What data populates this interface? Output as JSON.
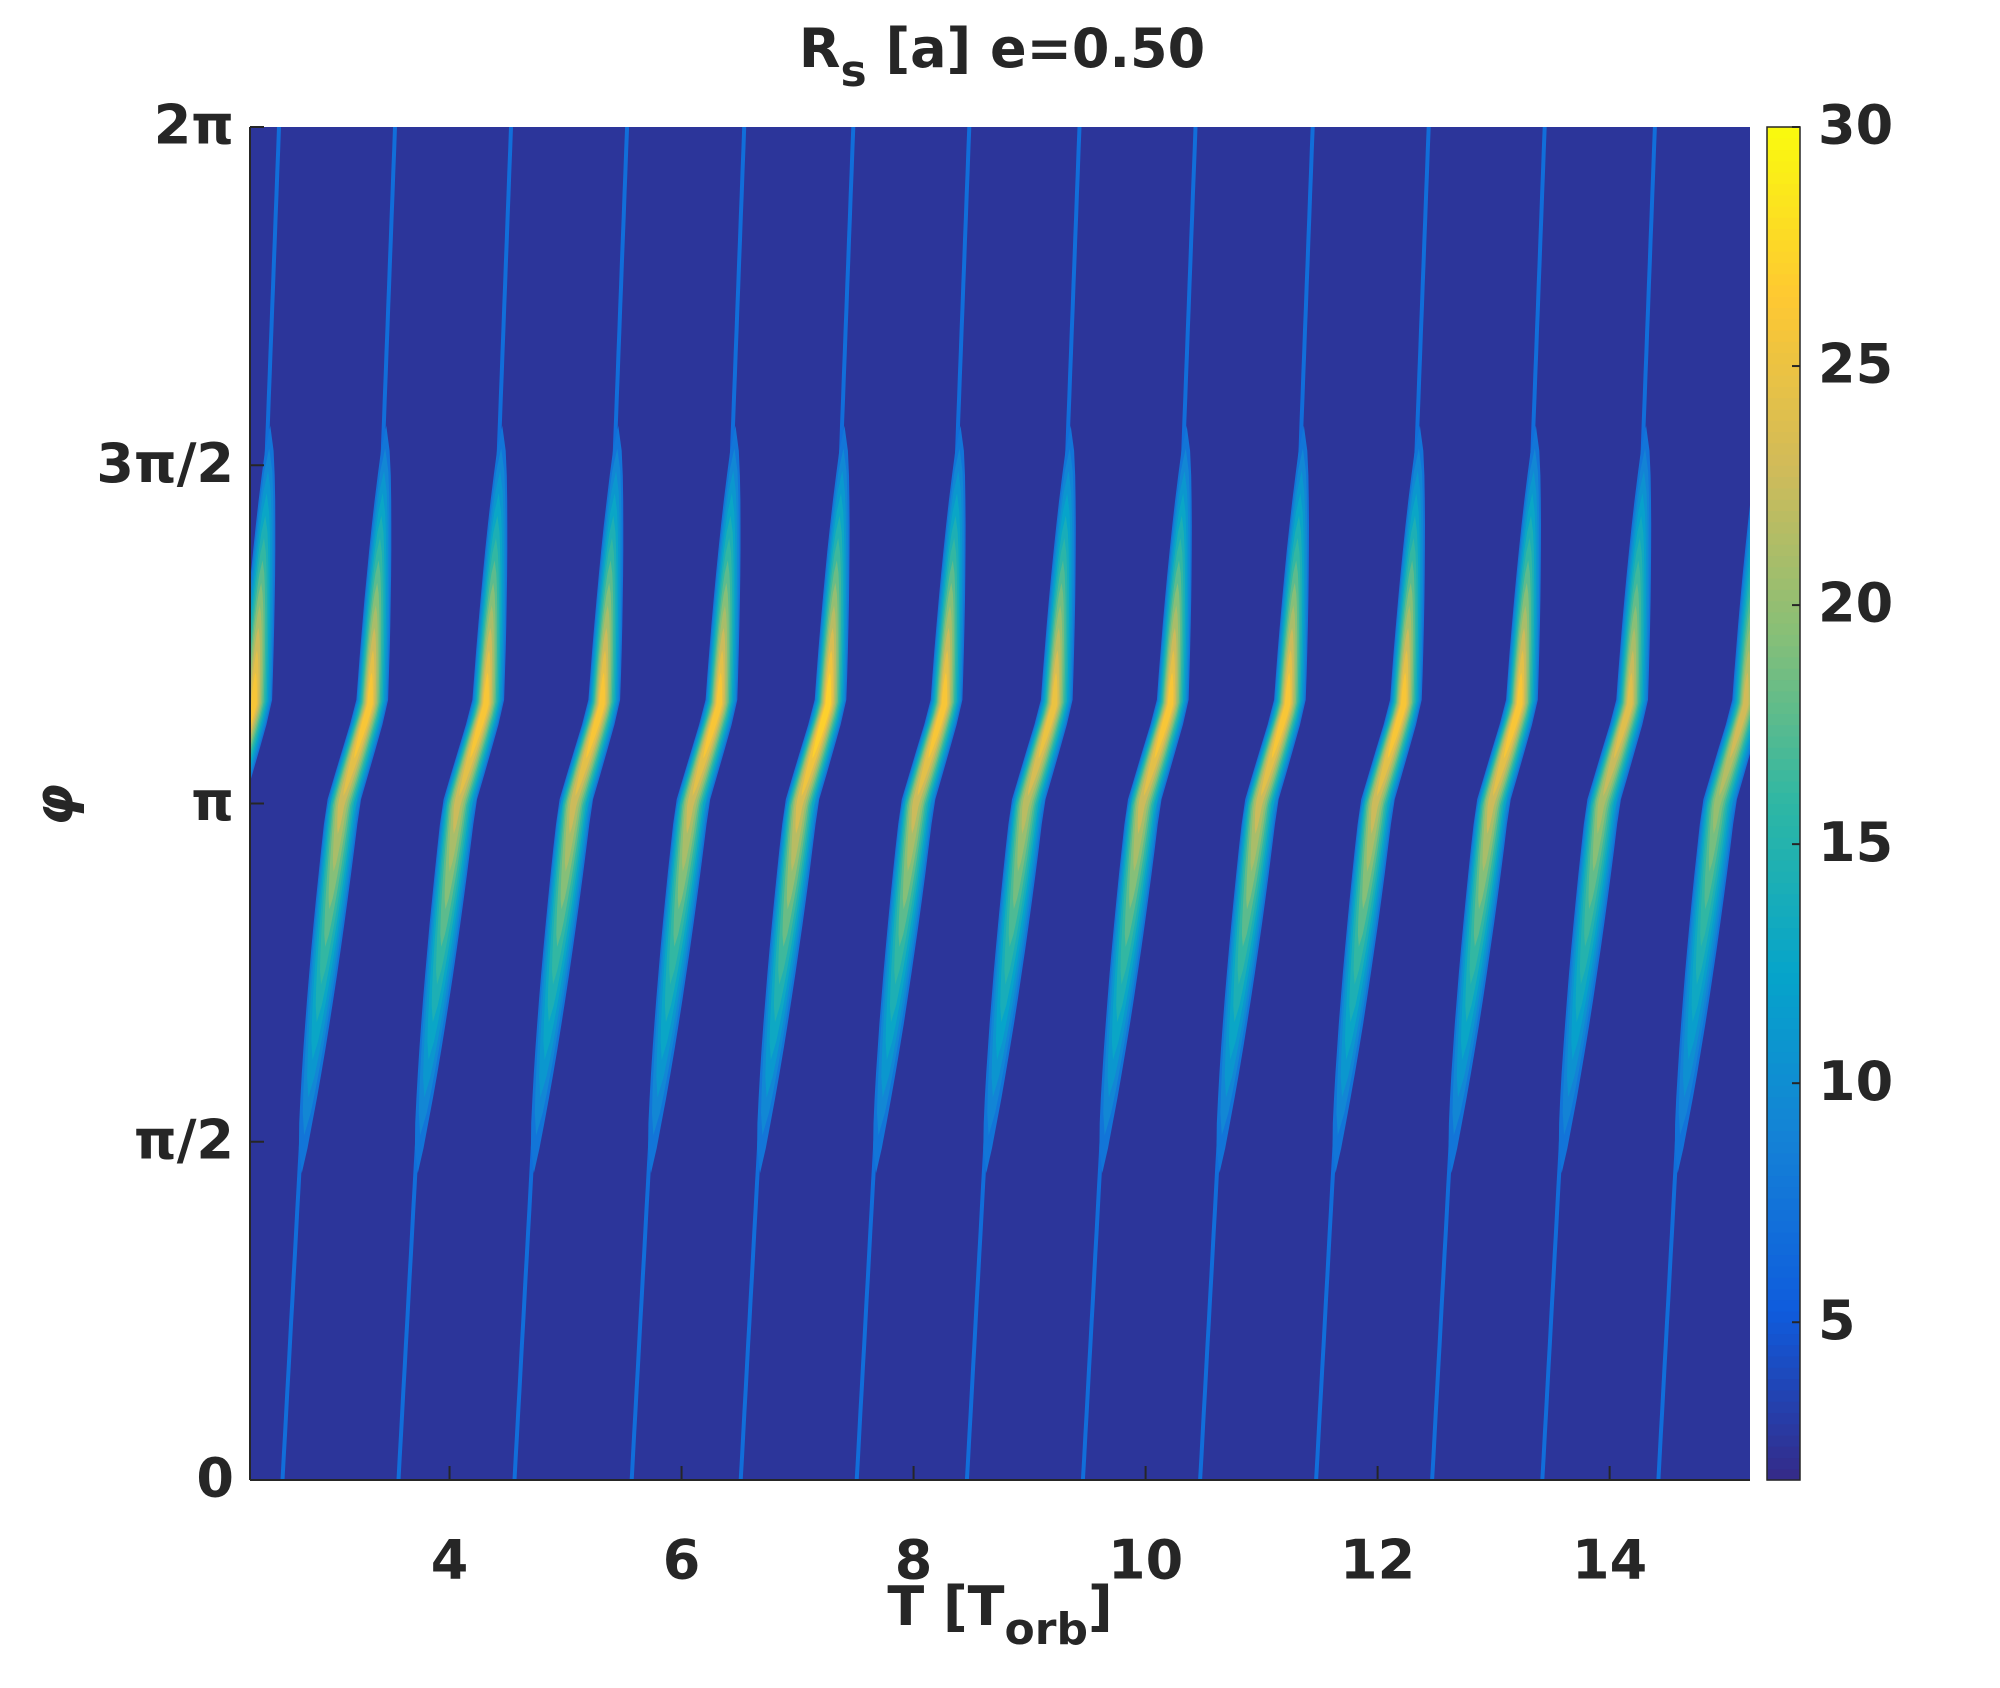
{
  "chart_data": {
    "type": "heatmap",
    "title": [
      "R",
      "s",
      " [a] e=0.50"
    ],
    "xlabel": [
      "T [T",
      "orb",
      "]"
    ],
    "ylabel": "φ",
    "x": [
      2.31,
      3.31,
      4.31,
      5.31,
      6.32,
      7.26,
      8.26,
      9.21,
      10.21,
      11.22,
      12.22,
      13.22,
      14.17,
      15.17
    ],
    "y": [
      3.6,
      3.6,
      3.6,
      3.6,
      3.6,
      3.6,
      3.6,
      3.6,
      3.6,
      3.6,
      3.6,
      3.6,
      3.6,
      3.6
    ],
    "values": [
      26,
      26,
      26,
      26,
      26,
      27,
      26,
      25,
      26,
      26,
      26,
      26,
      24,
      23
    ],
    "background_value": 2.5,
    "xlim": [
      2.28,
      15.21
    ],
    "xticks": [
      4,
      6,
      8,
      10,
      12,
      14
    ],
    "ylim": [
      0,
      6.2832
    ],
    "yticks": [
      0,
      {
        "value": 1.5708,
        "label": "π/2"
      },
      {
        "value": 3.1416,
        "label": "π"
      },
      {
        "value": 4.7124,
        "label": "3π/2"
      },
      {
        "value": 6.2832,
        "label": "2π"
      }
    ],
    "clim": [
      1.7,
      30
    ],
    "cticks": [
      5,
      10,
      15,
      20,
      25,
      30
    ],
    "colormap": [
      "#352a87",
      "#0f5cdd",
      "#1481d6",
      "#06a4ca",
      "#2eb7a4",
      "#87bf77",
      "#d1bb59",
      "#fec832",
      "#f9fb0e"
    ]
  }
}
